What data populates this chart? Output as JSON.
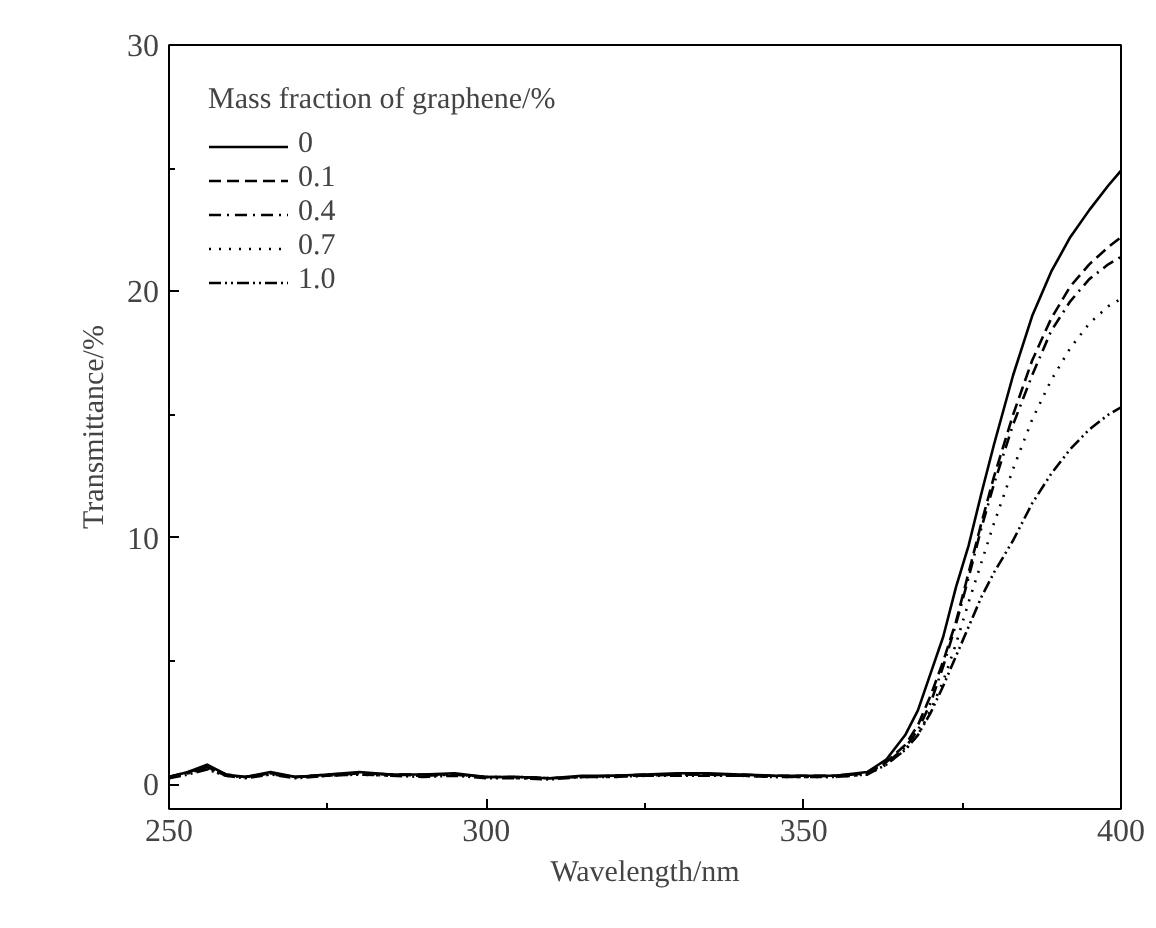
{
  "chart_data": {
    "type": "line",
    "xlabel": "Wavelength/nm",
    "ylabel": "Transmittance/%",
    "legend_title": "Mass fraction of graphene/%",
    "legend": "top left",
    "grid": false,
    "xlim": [
      250,
      400
    ],
    "ylim": [
      -1,
      30
    ],
    "xticks": [
      250,
      300,
      350,
      400
    ],
    "yticks": [
      0,
      10,
      20,
      30
    ],
    "x": [
      250,
      253,
      256,
      259,
      262,
      266,
      270,
      275,
      280,
      285,
      290,
      295,
      300,
      305,
      310,
      315,
      320,
      325,
      330,
      335,
      340,
      345,
      350,
      355,
      360,
      363,
      366,
      368,
      370,
      372,
      374,
      376,
      378,
      380,
      383,
      386,
      389,
      392,
      395,
      398,
      400
    ],
    "series": [
      {
        "name": "0",
        "color": "#000000",
        "line_style": "solid",
        "values": [
          0.3,
          0.5,
          0.8,
          0.4,
          0.3,
          0.5,
          0.3,
          0.4,
          0.5,
          0.4,
          0.4,
          0.45,
          0.3,
          0.3,
          0.25,
          0.35,
          0.35,
          0.4,
          0.45,
          0.45,
          0.4,
          0.35,
          0.35,
          0.35,
          0.5,
          1.0,
          2.0,
          3.0,
          4.5,
          6.0,
          8.0,
          9.7,
          11.8,
          13.8,
          16.6,
          19.0,
          20.8,
          22.2,
          23.3,
          24.3,
          24.9
        ]
      },
      {
        "name": "0.1",
        "color": "#000000",
        "line_style": "dashed",
        "values": [
          0.3,
          0.5,
          0.7,
          0.4,
          0.3,
          0.45,
          0.3,
          0.4,
          0.45,
          0.4,
          0.4,
          0.4,
          0.3,
          0.3,
          0.25,
          0.3,
          0.35,
          0.4,
          0.4,
          0.4,
          0.4,
          0.35,
          0.35,
          0.35,
          0.45,
          0.9,
          1.6,
          2.4,
          3.6,
          5.0,
          6.6,
          8.6,
          10.6,
          12.5,
          15.0,
          17.2,
          18.9,
          20.2,
          21.1,
          21.8,
          22.2
        ]
      },
      {
        "name": "0.4",
        "color": "#000000",
        "line_style": "dashdot",
        "values": [
          0.3,
          0.45,
          0.7,
          0.35,
          0.3,
          0.45,
          0.3,
          0.35,
          0.45,
          0.4,
          0.35,
          0.4,
          0.3,
          0.3,
          0.25,
          0.3,
          0.35,
          0.35,
          0.4,
          0.4,
          0.35,
          0.35,
          0.3,
          0.35,
          0.45,
          0.85,
          1.5,
          2.2,
          3.3,
          4.8,
          6.5,
          8.4,
          10.4,
          12.2,
          14.6,
          16.6,
          18.4,
          19.6,
          20.5,
          21.1,
          21.4
        ]
      },
      {
        "name": "0.7",
        "color": "#000000",
        "line_style": "dotted",
        "values": [
          0.25,
          0.45,
          0.65,
          0.35,
          0.3,
          0.4,
          0.3,
          0.35,
          0.4,
          0.35,
          0.35,
          0.4,
          0.3,
          0.25,
          0.25,
          0.3,
          0.3,
          0.35,
          0.4,
          0.4,
          0.35,
          0.3,
          0.3,
          0.3,
          0.4,
          0.8,
          1.4,
          2.0,
          3.0,
          4.2,
          5.7,
          7.4,
          9.0,
          10.6,
          12.8,
          14.8,
          16.4,
          17.7,
          18.7,
          19.4,
          19.7
        ]
      },
      {
        "name": "1.0",
        "color": "#000000",
        "line_style": "dashdotdot",
        "values": [
          0.25,
          0.4,
          0.6,
          0.35,
          0.25,
          0.4,
          0.25,
          0.35,
          0.4,
          0.35,
          0.3,
          0.35,
          0.25,
          0.25,
          0.2,
          0.3,
          0.3,
          0.35,
          0.35,
          0.35,
          0.35,
          0.3,
          0.3,
          0.3,
          0.4,
          0.8,
          1.4,
          2.0,
          2.9,
          4.0,
          5.2,
          6.4,
          7.6,
          8.6,
          9.9,
          11.4,
          12.6,
          13.6,
          14.4,
          15.0,
          15.3
        ]
      }
    ]
  }
}
